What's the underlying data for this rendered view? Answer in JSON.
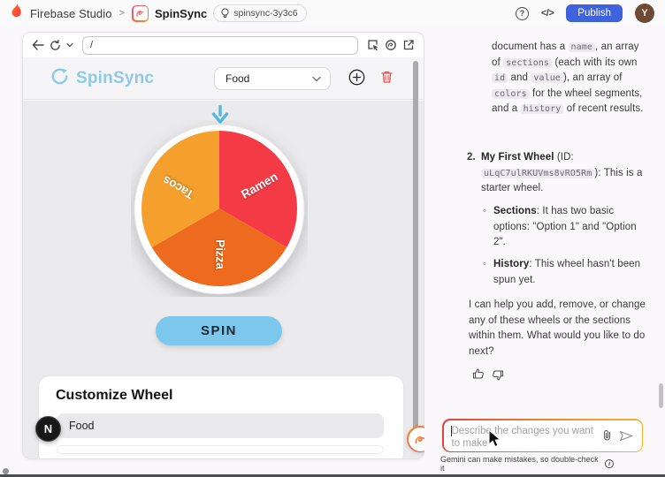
{
  "topbar": {
    "brand": "Firebase Studio",
    "sep": ">",
    "app_name": "SpinSync",
    "env_badge": "spinsync-3y3c6",
    "help": "?",
    "code_icon": "</>",
    "publish": "Publish",
    "avatar_initial": "Y"
  },
  "preview": {
    "url": "/",
    "app": {
      "logo": "SpinSync",
      "selected_wheel": "Food",
      "spin": "SPIN",
      "customize_title": "Customize Wheel",
      "section_value": "Food",
      "next_badge": "N",
      "wheel": {
        "sections": [
          {
            "label": "Ramen",
            "color": "#f43b45"
          },
          {
            "label": "Pizza",
            "color": "#ed6a1e"
          },
          {
            "label": "Tacos",
            "color": "#f5a02c"
          }
        ],
        "pointer_color": "#57b7e1",
        "spin_button_color": "#7cc7ec"
      }
    }
  },
  "chat": {
    "p1": [
      {
        "t": "document has a "
      },
      {
        "t": "name",
        "s": "code"
      },
      {
        "t": ", an array of "
      },
      {
        "t": "sections",
        "s": "code"
      },
      {
        "t": " (each with its own "
      },
      {
        "t": "id",
        "s": "code"
      },
      {
        "t": " and "
      },
      {
        "t": "value",
        "s": "code"
      },
      {
        "t": "), an array of "
      },
      {
        "t": "colors",
        "s": "code"
      },
      {
        "t": " for the wheel segments, and a "
      },
      {
        "t": "history",
        "s": "code"
      },
      {
        "t": " of recent results."
      }
    ],
    "item2_num": "2.",
    "item2": [
      {
        "t": "My First Wheel",
        "s": "b"
      },
      {
        "t": " (ID: "
      },
      {
        "t": "uLqC7ulRKUVms8vRO5Rm",
        "s": "code"
      },
      {
        "t": "): This is a starter wheel."
      }
    ],
    "bullet": "◦",
    "sub1": [
      {
        "t": "Sections",
        "s": "b"
      },
      {
        "t": ": It has two basic options: \"Option 1\" and \"Option 2\"."
      }
    ],
    "sub2": [
      {
        "t": "History",
        "s": "b"
      },
      {
        "t": ": This wheel hasn't been spun yet."
      }
    ],
    "closing": "I can help you add, remove, or change any of these wheels or the sections within them. What would you like to do next?",
    "input_placeholder": "Describe the changes you want to make",
    "disclaimer": "Gemini can make mistakes, so double-check it",
    "info": "i"
  },
  "colors": {
    "publish_blue": "#3e63dd",
    "logo_blue": "#8dcaea",
    "trash_red": "#ef4a45",
    "gradient_start": "#e5403f",
    "gradient_end": "#f5b32d"
  }
}
